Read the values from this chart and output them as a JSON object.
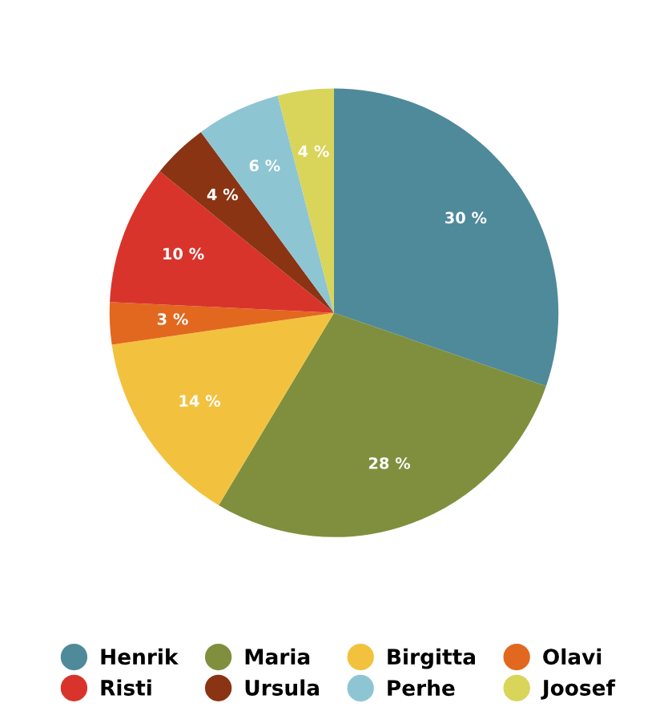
{
  "chart_data": {
    "type": "pie",
    "categories": [
      "Henrik",
      "Maria",
      "Birgitta",
      "Olavi",
      "Risti",
      "Ursula",
      "Perhe",
      "Joosef"
    ],
    "values": [
      30,
      28,
      14,
      3,
      10,
      4,
      6,
      4
    ],
    "colors": [
      "#4f8a9a",
      "#7f8f3e",
      "#f2c23e",
      "#e2681f",
      "#d9342b",
      "#8a3414",
      "#8ec5d3",
      "#d8d55a"
    ],
    "value_labels": [
      "30 %",
      "28 %",
      "14 %",
      "3 %",
      "10 %",
      "4 %",
      "6 %",
      "4 %"
    ],
    "legend": "bottom"
  }
}
